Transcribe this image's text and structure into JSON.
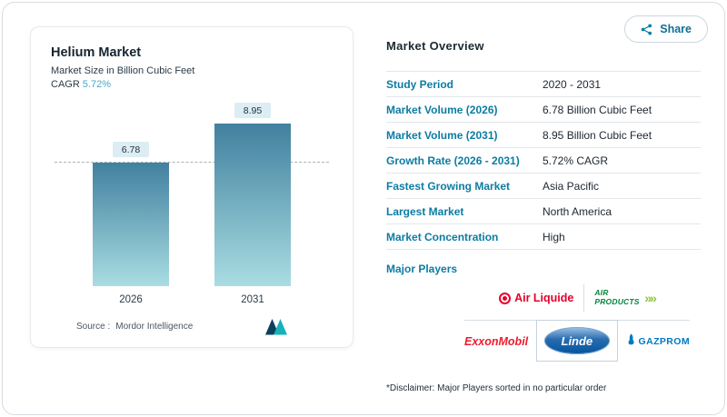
{
  "share_button": {
    "label": "Share"
  },
  "chart_card": {
    "title": "Helium Market",
    "subtitle": "Market Size in Billion Cubic Feet",
    "cagr_label": "CAGR",
    "cagr_value": "5.72%",
    "source_label": "Source :",
    "source_value": "Mordor Intelligence"
  },
  "chart_data": {
    "type": "bar",
    "title": "Helium Market",
    "subtitle": "Market Size in Billion Cubic Feet",
    "categories": [
      "2026",
      "2031"
    ],
    "values": [
      6.78,
      8.95
    ],
    "value_labels": [
      "6.78",
      "8.95"
    ],
    "ylabel": "Billion Cubic Feet",
    "ylim": [
      0,
      10
    ],
    "reference_line": 6.78,
    "grid": false,
    "legend": false,
    "bar_gradient": [
      "#41809f",
      "#a9dde2"
    ],
    "value_chip_bg": "#dcedf4"
  },
  "overview": {
    "title": "Market Overview",
    "rows": [
      {
        "label": "Study Period",
        "value": "2020 - 2031"
      },
      {
        "label": "Market Volume (2026)",
        "value": "6.78 Billion Cubic Feet"
      },
      {
        "label": "Market Volume (2031)",
        "value": "8.95 Billion Cubic Feet"
      },
      {
        "label": "Growth Rate (2026 - 2031)",
        "value": "5.72% CAGR"
      },
      {
        "label": "Fastest Growing Market",
        "value": "Asia Pacific"
      },
      {
        "label": "Largest Market",
        "value": "North America"
      },
      {
        "label": "Market Concentration",
        "value": "High"
      }
    ],
    "major_players_label": "Major Players",
    "players": [
      {
        "name": "Air Liquide",
        "color": "#e4002b"
      },
      {
        "name": "AIR PRODUCTS",
        "color": "#00853e",
        "arrows": "»»"
      },
      {
        "name": "ExxonMobil",
        "color": "#ed1c2e"
      },
      {
        "name": "Linde",
        "color": "#01549e"
      },
      {
        "name": "GAZPROM",
        "color": "#0079c2"
      }
    ],
    "disclaimer": "*Disclaimer: Major Players sorted in no particular order"
  },
  "colors": {
    "accent_teal": "#0c7ca3",
    "cagr_teal": "#49a9c9",
    "text_dark": "#1c2630",
    "border_light": "#e2e7ea"
  }
}
